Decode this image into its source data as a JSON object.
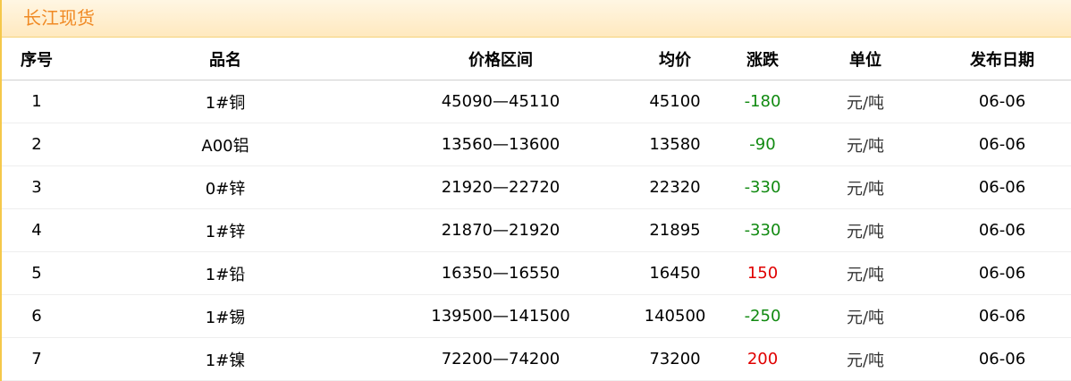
{
  "title": "长江现货",
  "colors": {
    "up": "#e00000",
    "down": "#118a11",
    "title": "#f08a24"
  },
  "headers": [
    "序号",
    "品名",
    "价格区间",
    "均价",
    "涨跌",
    "单位",
    "发布日期"
  ],
  "rows": [
    {
      "no": "1",
      "name": "1#铜",
      "range": "45090—45110",
      "avg": "45100",
      "change": "-180",
      "unit": "元/吨",
      "date": "06-06"
    },
    {
      "no": "2",
      "name": "A00铝",
      "range": "13560—13600",
      "avg": "13580",
      "change": "-90",
      "unit": "元/吨",
      "date": "06-06"
    },
    {
      "no": "3",
      "name": "0#锌",
      "range": "21920—22720",
      "avg": "22320",
      "change": "-330",
      "unit": "元/吨",
      "date": "06-06"
    },
    {
      "no": "4",
      "name": "1#锌",
      "range": "21870—21920",
      "avg": "21895",
      "change": "-330",
      "unit": "元/吨",
      "date": "06-06"
    },
    {
      "no": "5",
      "name": "1#铅",
      "range": "16350—16550",
      "avg": "16450",
      "change": "150",
      "unit": "元/吨",
      "date": "06-06"
    },
    {
      "no": "6",
      "name": "1#锡",
      "range": "139500—141500",
      "avg": "140500",
      "change": "-250",
      "unit": "元/吨",
      "date": "06-06"
    },
    {
      "no": "7",
      "name": "1#镍",
      "range": "72200—74200",
      "avg": "73200",
      "change": "200",
      "unit": "元/吨",
      "date": "06-06"
    }
  ]
}
